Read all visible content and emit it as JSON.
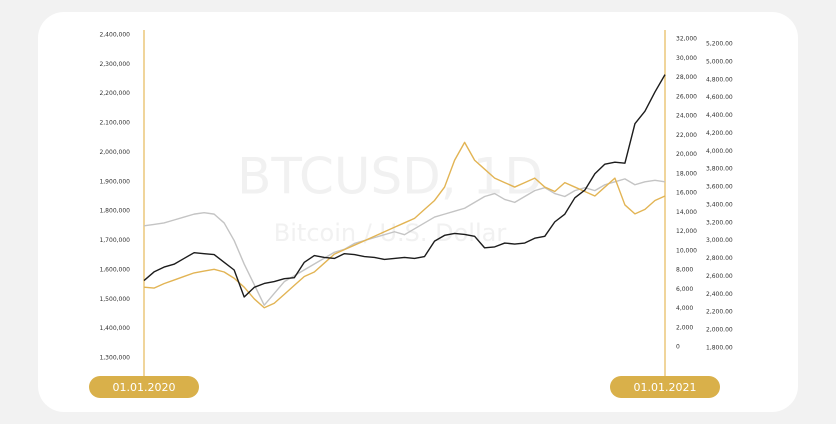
{
  "chart_data": {
    "type": "line",
    "watermark": "BTCUSD, 1D",
    "watermark_subtitle": "Bitcoin / U.S. Dollar",
    "categories": [
      "01.01.2020",
      null,
      null,
      null,
      null,
      null,
      null,
      null,
      null,
      null,
      null,
      null,
      null,
      null,
      null,
      null,
      null,
      null,
      null,
      null,
      null,
      null,
      null,
      null,
      null,
      null,
      null,
      null,
      null,
      null,
      null,
      null,
      null,
      null,
      null,
      null,
      null,
      null,
      null,
      null,
      null,
      null,
      null,
      null,
      null,
      null,
      null,
      null,
      null,
      null,
      null,
      null,
      "01.01.2021"
    ],
    "ylim": [
      1300000,
      2400000
    ],
    "yticks": [
      {
        "value": 2400000,
        "label": "2,400,000"
      },
      {
        "value": 2300000,
        "label": "2,300,000"
      },
      {
        "value": 2200000,
        "label": "2,200,000"
      },
      {
        "value": 2100000,
        "label": "2,100,000"
      },
      {
        "value": 2000000,
        "label": "2,000,000"
      },
      {
        "value": 1900000,
        "label": "1,900,000"
      },
      {
        "value": 1800000,
        "label": "1,800,000"
      },
      {
        "value": 1700000,
        "label": "1,700,000"
      },
      {
        "value": 1600000,
        "label": "1,600,000"
      },
      {
        "value": 1500000,
        "label": "1,500,000"
      },
      {
        "value": 1400000,
        "label": "1,400,000"
      },
      {
        "value": 1300000,
        "label": "1,300,000"
      }
    ],
    "y2lim": [
      0,
      32000
    ],
    "y2ticks": [
      {
        "value": 32000,
        "label": "32,000"
      },
      {
        "value": 30000,
        "label": "30,000"
      },
      {
        "value": 28000,
        "label": "28,000"
      },
      {
        "value": 26000,
        "label": "26,000"
      },
      {
        "value": 24000,
        "label": "24,000"
      },
      {
        "value": 22000,
        "label": "22,000"
      },
      {
        "value": 20000,
        "label": "20,000"
      },
      {
        "value": 18000,
        "label": "18,000"
      },
      {
        "value": 16000,
        "label": "16,000"
      },
      {
        "value": 14000,
        "label": "14,000"
      },
      {
        "value": 12000,
        "label": "12,000"
      },
      {
        "value": 10000,
        "label": "10,000"
      },
      {
        "value": 8000,
        "label": "8,000"
      },
      {
        "value": 6000,
        "label": "6,000"
      },
      {
        "value": 4000,
        "label": "4,000"
      },
      {
        "value": 2000,
        "label": "2,000"
      },
      0
    ],
    "y3lim": [
      1800,
      5200
    ],
    "y3ticks": [
      {
        "value": 5200,
        "label": "5,200.00"
      },
      {
        "value": 5000,
        "label": "5,000.00"
      },
      {
        "value": 4800,
        "label": "4,800.00"
      },
      {
        "value": 4600,
        "label": "4,600.00"
      },
      {
        "value": 4400,
        "label": "4,400.00"
      },
      {
        "value": 4200,
        "label": "4,200.00"
      },
      {
        "value": 4000,
        "label": "4,000.00"
      },
      {
        "value": 3800,
        "label": "3,800.00"
      },
      {
        "value": 3600,
        "label": "3,600.00"
      },
      {
        "value": 3400,
        "label": "3,400.00"
      },
      {
        "value": 3200,
        "label": "3,200.00"
      },
      {
        "value": 3000,
        "label": "3,000.00"
      },
      {
        "value": 2800,
        "label": "2,800.00"
      },
      {
        "value": 2600,
        "label": "2,600.00"
      },
      {
        "value": 2400,
        "label": "2,400.00"
      },
      {
        "value": 2200,
        "label": "2,200.00"
      },
      {
        "value": 2000,
        "label": "2,000.00"
      },
      {
        "value": 1800,
        "label": "1,800.00"
      }
    ],
    "series": [
      {
        "color": "#c4c4c4",
        "axis": "y",
        "values": [
          1750000,
          1755000,
          1760000,
          1770000,
          1780000,
          1790000,
          1795000,
          1790000,
          1760000,
          1700000,
          1620000,
          1550000,
          1480000,
          1520000,
          1560000,
          1580000,
          1600000,
          1620000,
          1640000,
          1660000,
          1670000,
          1690000,
          1700000,
          1710000,
          1720000,
          1730000,
          1720000,
          1740000,
          1760000,
          1780000,
          1790000,
          1800000,
          1810000,
          1830000,
          1850000,
          1860000,
          1840000,
          1830000,
          1850000,
          1870000,
          1880000,
          1860000,
          1850000,
          1870000,
          1880000,
          1870000,
          1890000,
          1900000,
          1910000,
          1890000,
          1900000,
          1905000,
          1900000
        ]
      },
      {
        "color": "#e2b454",
        "axis": "y3",
        "values": [
          2480,
          2470,
          2520,
          2560,
          2600,
          2640,
          2660,
          2680,
          2650,
          2580,
          2480,
          2350,
          2250,
          2300,
          2400,
          2500,
          2600,
          2650,
          2750,
          2850,
          2900,
          2950,
          3000,
          3050,
          3100,
          3150,
          3200,
          3250,
          3350,
          3450,
          3600,
          3900,
          4100,
          3900,
          3800,
          3700,
          3650,
          3600,
          3650,
          3700,
          3600,
          3550,
          3650,
          3600,
          3550,
          3500,
          3600,
          3700,
          3400,
          3300,
          3350,
          3450,
          3500
        ]
      },
      {
        "color": "#1c1c1c",
        "axis": "y2",
        "values": [
          6900,
          7800,
          8300,
          8600,
          9200,
          9800,
          9700,
          9600,
          8800,
          8000,
          5200,
          6200,
          6600,
          6800,
          7100,
          7200,
          8800,
          9500,
          9300,
          9200,
          9700,
          9600,
          9400,
          9300,
          9100,
          9200,
          9300,
          9200,
          9400,
          11000,
          11600,
          11800,
          11700,
          11500,
          10300,
          10400,
          10800,
          10700,
          10800,
          11300,
          11500,
          13000,
          13800,
          15500,
          16300,
          18000,
          19000,
          19200,
          19100,
          23200,
          24500,
          26500,
          28300
        ]
      }
    ]
  }
}
